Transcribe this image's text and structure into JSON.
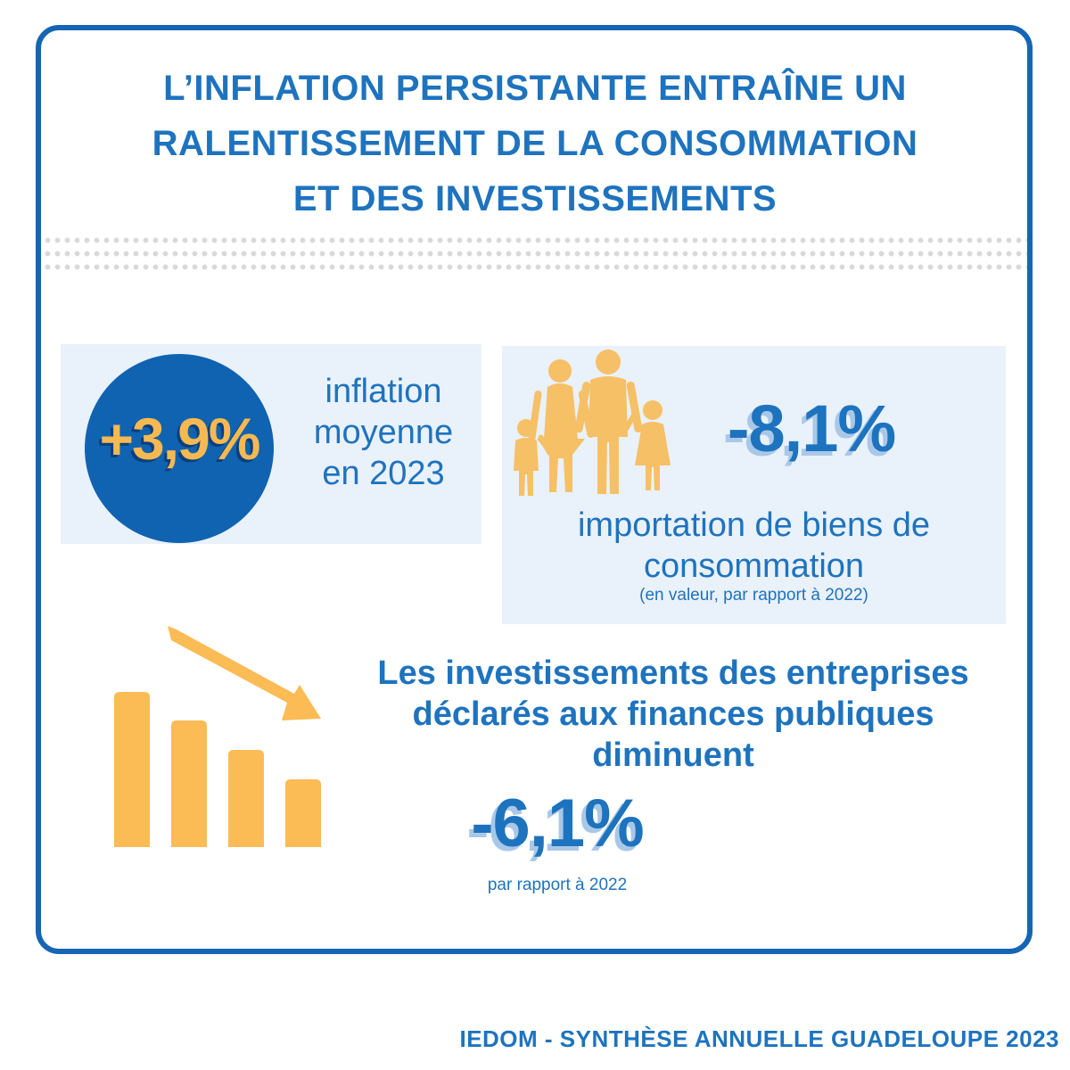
{
  "title": {
    "line1": "L’INFLATION PERSISTANTE ENTRAÎNE UN",
    "line2": "RALENTISSEMENT DE LA CONSOMMATION",
    "line3": "ET DES INVESTISSEMENTS"
  },
  "inflation": {
    "value": "+3,9%",
    "label_line1": "inflation",
    "label_line2": "moyenne",
    "label_line3": "en 2023"
  },
  "imports": {
    "value": "-8,1%",
    "label_line1": "importation de biens de",
    "label_line2": "consommation",
    "note": "(en valeur, par rapport à 2022)",
    "icon": "family-icon"
  },
  "investment": {
    "title_line1": "Les investissements des entreprises",
    "title_line2": "déclarés aux finances publiques",
    "title_line3": "diminuent",
    "value": "-6,1%",
    "note": "par rapport à 2022",
    "icon": "declining-bars-arrow-icon"
  },
  "footer": "IEDOM - SYNTHÈSE ANNUELLE GUADELOUPE 2023",
  "colors": {
    "primary_blue": "#1e73be",
    "dark_blue": "#1063b1",
    "accent_yellow": "#f6b952",
    "panel_bg": "#e9f1fa"
  }
}
